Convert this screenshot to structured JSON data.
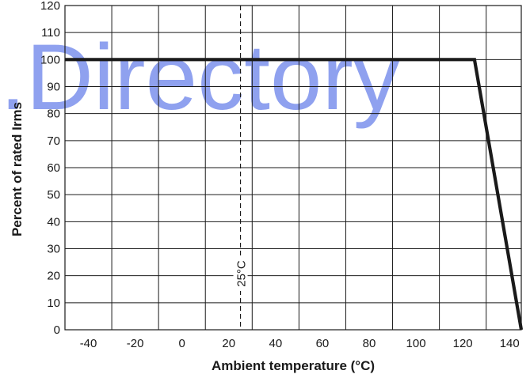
{
  "watermark": {
    "text": ".Directory",
    "color": "#6f86ea"
  },
  "chart_data": {
    "type": "line",
    "title": "",
    "xlabel": "Ambient temperature (°C)",
    "ylabel": "Percent of rated Irms",
    "xlim": [
      -50,
      145
    ],
    "ylim": [
      0,
      120
    ],
    "x_ticks": [
      -40,
      -20,
      0,
      20,
      40,
      60,
      80,
      100,
      120,
      140
    ],
    "y_ticks": [
      0,
      10,
      20,
      30,
      40,
      50,
      60,
      70,
      80,
      90,
      100,
      110,
      120
    ],
    "grid": true,
    "vertical_grid_x": [
      -50,
      -30,
      -10,
      10,
      30,
      50,
      70,
      90,
      110,
      130,
      145
    ],
    "series": [
      {
        "color": "#1a1a1a",
        "x": [
          -50,
          125,
          145
        ],
        "y": [
          100,
          100,
          0
        ]
      }
    ],
    "reference_line": {
      "x": 25,
      "label": "25°C",
      "style": "dashed"
    }
  }
}
